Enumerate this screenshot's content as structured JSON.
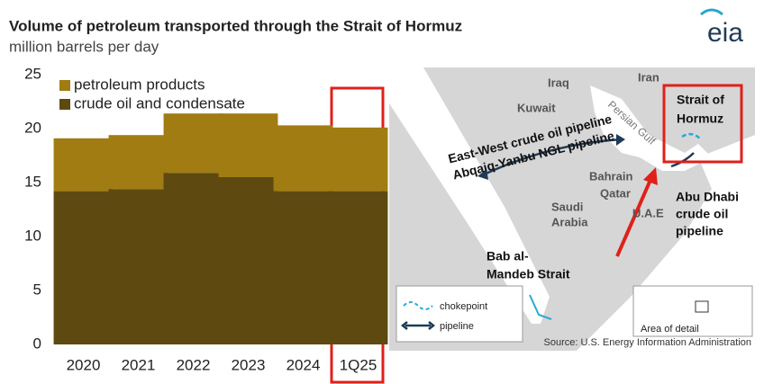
{
  "chart_data": {
    "type": "stacked_bar",
    "title": "Volume of petroleum transported through the Strait of Hormuz",
    "subtitle": "million barrels per day",
    "logo": "eia",
    "categories": [
      "2020",
      "2021",
      "2022",
      "2023",
      "2024",
      "1Q25"
    ],
    "series": [
      {
        "name": "crude oil and condensate",
        "color": "#5e4a10",
        "values": [
          14.2,
          14.4,
          15.9,
          15.5,
          14.2,
          14.2
        ]
      },
      {
        "name": "petroleum products",
        "color": "#a07c12",
        "values": [
          4.9,
          5.0,
          5.5,
          5.9,
          6.1,
          5.9
        ]
      }
    ],
    "ylim": [
      0,
      25
    ],
    "yticks": [
      0,
      5,
      10,
      15,
      20,
      25
    ],
    "grid": false,
    "legend": "top-left"
  },
  "map": {
    "labels": [
      {
        "lines": [
          "Iraq"
        ]
      },
      {
        "lines": [
          "Iran"
        ]
      },
      {
        "lines": [
          "Kuwait"
        ]
      },
      {
        "lines": [
          "Persian Gulf"
        ]
      },
      {
        "lines": [
          "Bahrain"
        ]
      },
      {
        "lines": [
          "Qatar"
        ]
      },
      {
        "lines": [
          "Saudi",
          "Arabia"
        ]
      },
      {
        "lines": [
          "U.A.E"
        ]
      }
    ],
    "callouts": [
      {
        "lines": [
          "Strait of",
          "Hormuz"
        ]
      },
      {
        "lines": [
          "Abu Dhabi",
          "crude oil",
          "pipeline"
        ]
      },
      {
        "lines": [
          "Bab al-",
          "Mandeb Strait"
        ]
      },
      {
        "lines": [
          "East-West crude oil pipeline"
        ]
      },
      {
        "lines": [
          "Abqaiq-Yanbu NGL pipeline"
        ]
      }
    ],
    "legend": [
      "chokepoint",
      "pipeline"
    ],
    "inset": "Area of detail",
    "source": "Source: U.S. Energy Information Administration"
  }
}
